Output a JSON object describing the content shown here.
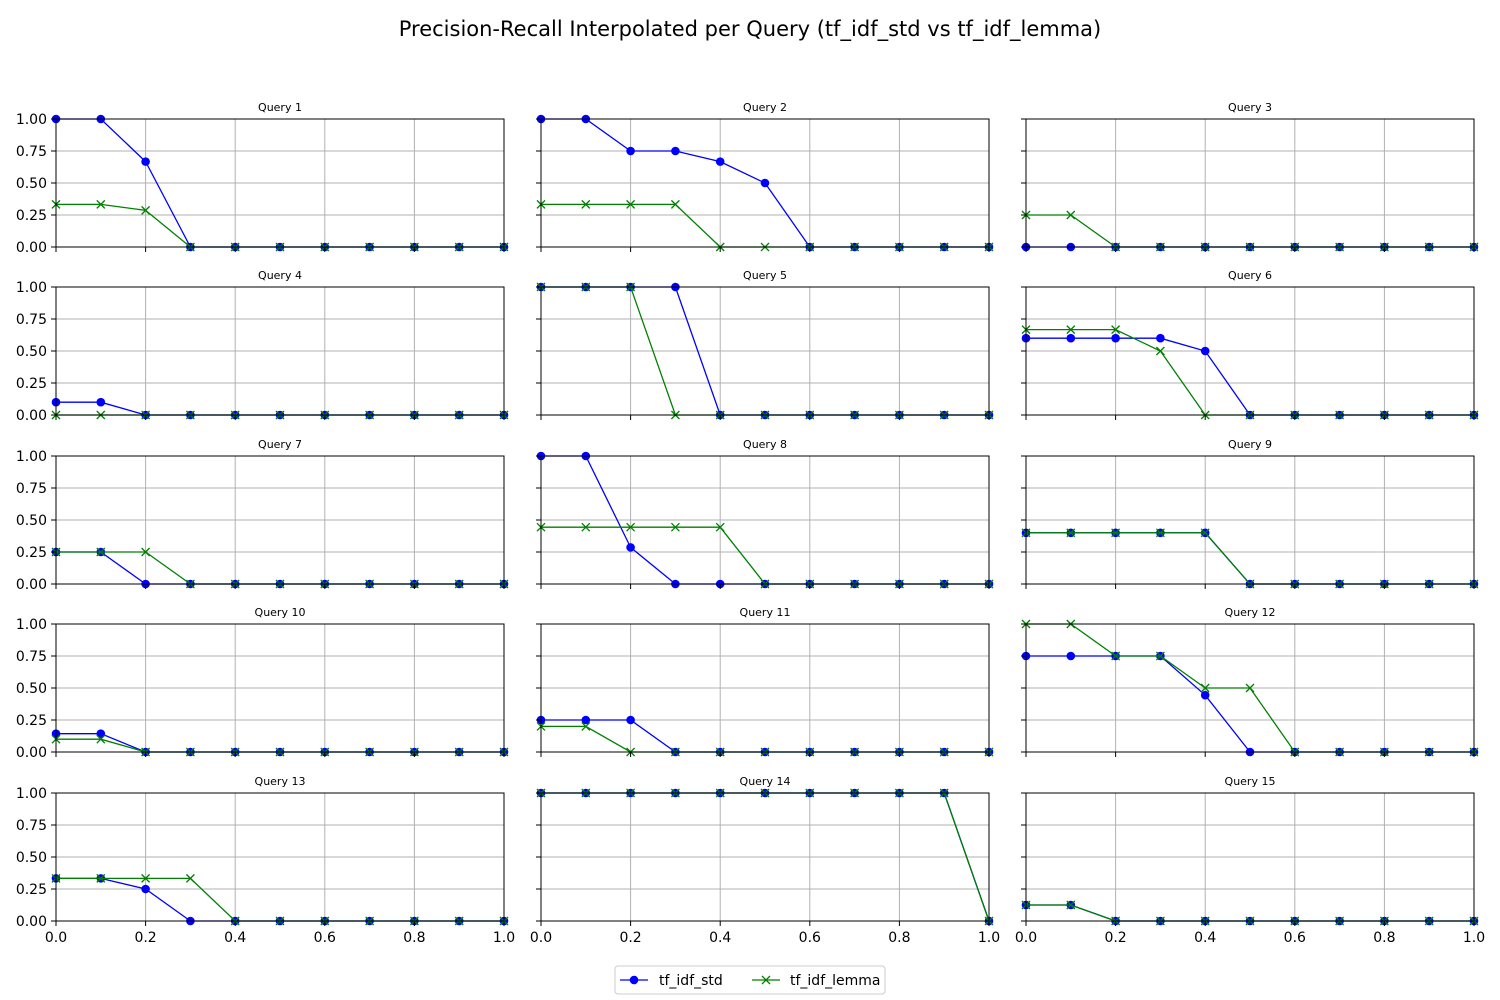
{
  "figure": {
    "title": "Precision-Recall Interpolated per Query (tf_idf_std vs tf_idf_lemma)"
  },
  "colors": {
    "std": "#0000ff",
    "lemma": "#008000",
    "grid": "#b0b0b0"
  },
  "legend": {
    "placement": "bottom-center",
    "items": [
      {
        "label": "tf_idf_std",
        "marker": "circle",
        "color": "#0000ff"
      },
      {
        "label": "tf_idf_lemma",
        "marker": "x",
        "color": "#008000"
      }
    ]
  },
  "chart_data": {
    "type": "line",
    "layout": {
      "rows": 5,
      "cols": 3
    },
    "x": [
      0.0,
      0.1,
      0.2,
      0.3,
      0.4,
      0.5,
      0.6,
      0.7,
      0.8,
      0.9,
      1.0
    ],
    "xlim": [
      0,
      1
    ],
    "ylim": [
      0,
      1
    ],
    "xticks": [
      "0.0",
      "0.2",
      "0.4",
      "0.6",
      "0.8",
      "1.0"
    ],
    "yticks": [
      "0.00",
      "0.25",
      "0.50",
      "0.75",
      "1.00"
    ],
    "grid": true,
    "subplots": [
      {
        "title": "Query 1",
        "series": [
          {
            "name": "tf_idf_std",
            "values": [
              1,
              1,
              0.667,
              0,
              0,
              0,
              0,
              0,
              0,
              0,
              0
            ]
          },
          {
            "name": "tf_idf_lemma",
            "values": [
              0.333,
              0.333,
              0.286,
              0,
              0,
              0,
              0,
              0,
              0,
              0,
              0
            ]
          }
        ]
      },
      {
        "title": "Query 2",
        "series": [
          {
            "name": "tf_idf_std",
            "values": [
              1,
              1,
              0.75,
              0.75,
              0.667,
              0.5,
              0,
              0,
              0,
              0,
              0
            ]
          },
          {
            "name": "tf_idf_lemma",
            "values": [
              0.333,
              0.333,
              0.333,
              0.333,
              0,
              0,
              0,
              0,
              0,
              0,
              0
            ]
          }
        ]
      },
      {
        "title": "Query 3",
        "series": [
          {
            "name": "tf_idf_std",
            "values": [
              0,
              0,
              0,
              0,
              0,
              0,
              0,
              0,
              0,
              0,
              0
            ]
          },
          {
            "name": "tf_idf_lemma",
            "values": [
              0.25,
              0.25,
              0,
              0,
              0,
              0,
              0,
              0,
              0,
              0,
              0
            ]
          }
        ]
      },
      {
        "title": "Query 4",
        "series": [
          {
            "name": "tf_idf_std",
            "values": [
              0.1,
              0.1,
              0,
              0,
              0,
              0,
              0,
              0,
              0,
              0,
              0
            ]
          },
          {
            "name": "tf_idf_lemma",
            "values": [
              0,
              0,
              0,
              0,
              0,
              0,
              0,
              0,
              0,
              0,
              0
            ]
          }
        ]
      },
      {
        "title": "Query 5",
        "series": [
          {
            "name": "tf_idf_std",
            "values": [
              1,
              1,
              1,
              1,
              0,
              0,
              0,
              0,
              0,
              0,
              0
            ]
          },
          {
            "name": "tf_idf_lemma",
            "values": [
              1,
              1,
              1,
              0,
              0,
              0,
              0,
              0,
              0,
              0,
              0
            ]
          }
        ]
      },
      {
        "title": "Query 6",
        "series": [
          {
            "name": "tf_idf_std",
            "values": [
              0.6,
              0.6,
              0.6,
              0.6,
              0.5,
              0,
              0,
              0,
              0,
              0,
              0
            ]
          },
          {
            "name": "tf_idf_lemma",
            "values": [
              0.667,
              0.667,
              0.667,
              0.5,
              0,
              0,
              0,
              0,
              0,
              0,
              0
            ]
          }
        ]
      },
      {
        "title": "Query 7",
        "series": [
          {
            "name": "tf_idf_std",
            "values": [
              0.25,
              0.25,
              0,
              0,
              0,
              0,
              0,
              0,
              0,
              0,
              0
            ]
          },
          {
            "name": "tf_idf_lemma",
            "values": [
              0.25,
              0.25,
              0.25,
              0,
              0,
              0,
              0,
              0,
              0,
              0,
              0
            ]
          }
        ]
      },
      {
        "title": "Query 8",
        "series": [
          {
            "name": "tf_idf_std",
            "values": [
              1,
              1,
              0.286,
              0,
              0,
              0,
              0,
              0,
              0,
              0,
              0
            ]
          },
          {
            "name": "tf_idf_lemma",
            "values": [
              0.444,
              0.444,
              0.444,
              0.444,
              0.444,
              0,
              0,
              0,
              0,
              0,
              0
            ]
          }
        ]
      },
      {
        "title": "Query 9",
        "series": [
          {
            "name": "tf_idf_std",
            "values": [
              0.4,
              0.4,
              0.4,
              0.4,
              0.4,
              0,
              0,
              0,
              0,
              0,
              0
            ]
          },
          {
            "name": "tf_idf_lemma",
            "values": [
              0.4,
              0.4,
              0.4,
              0.4,
              0.4,
              0,
              0,
              0,
              0,
              0,
              0
            ]
          }
        ]
      },
      {
        "title": "Query 10",
        "series": [
          {
            "name": "tf_idf_std",
            "values": [
              0.143,
              0.143,
              0,
              0,
              0,
              0,
              0,
              0,
              0,
              0,
              0
            ]
          },
          {
            "name": "tf_idf_lemma",
            "values": [
              0.1,
              0.1,
              0,
              0,
              0,
              0,
              0,
              0,
              0,
              0,
              0
            ]
          }
        ]
      },
      {
        "title": "Query 11",
        "series": [
          {
            "name": "tf_idf_std",
            "values": [
              0.25,
              0.25,
              0.25,
              0,
              0,
              0,
              0,
              0,
              0,
              0,
              0
            ]
          },
          {
            "name": "tf_idf_lemma",
            "values": [
              0.2,
              0.2,
              0,
              0,
              0,
              0,
              0,
              0,
              0,
              0,
              0
            ]
          }
        ]
      },
      {
        "title": "Query 12",
        "series": [
          {
            "name": "tf_idf_std",
            "values": [
              0.75,
              0.75,
              0.75,
              0.75,
              0.444,
              0,
              0,
              0,
              0,
              0,
              0
            ]
          },
          {
            "name": "tf_idf_lemma",
            "values": [
              1,
              1,
              0.75,
              0.75,
              0.5,
              0.5,
              0,
              0,
              0,
              0,
              0
            ]
          }
        ]
      },
      {
        "title": "Query 13",
        "series": [
          {
            "name": "tf_idf_std",
            "values": [
              0.333,
              0.333,
              0.25,
              0,
              0,
              0,
              0,
              0,
              0,
              0,
              0
            ]
          },
          {
            "name": "tf_idf_lemma",
            "values": [
              0.333,
              0.333,
              0.333,
              0.333,
              0,
              0,
              0,
              0,
              0,
              0,
              0
            ]
          }
        ]
      },
      {
        "title": "Query 14",
        "series": [
          {
            "name": "tf_idf_std",
            "values": [
              1,
              1,
              1,
              1,
              1,
              1,
              1,
              1,
              1,
              1,
              0
            ]
          },
          {
            "name": "tf_idf_lemma",
            "values": [
              1,
              1,
              1,
              1,
              1,
              1,
              1,
              1,
              1,
              1,
              0
            ]
          }
        ]
      },
      {
        "title": "Query 15",
        "series": [
          {
            "name": "tf_idf_std",
            "values": [
              0.125,
              0.125,
              0,
              0,
              0,
              0,
              0,
              0,
              0,
              0,
              0
            ]
          },
          {
            "name": "tf_idf_lemma",
            "values": [
              0.125,
              0.125,
              0,
              0,
              0,
              0,
              0,
              0,
              0,
              0,
              0
            ]
          }
        ]
      }
    ]
  }
}
